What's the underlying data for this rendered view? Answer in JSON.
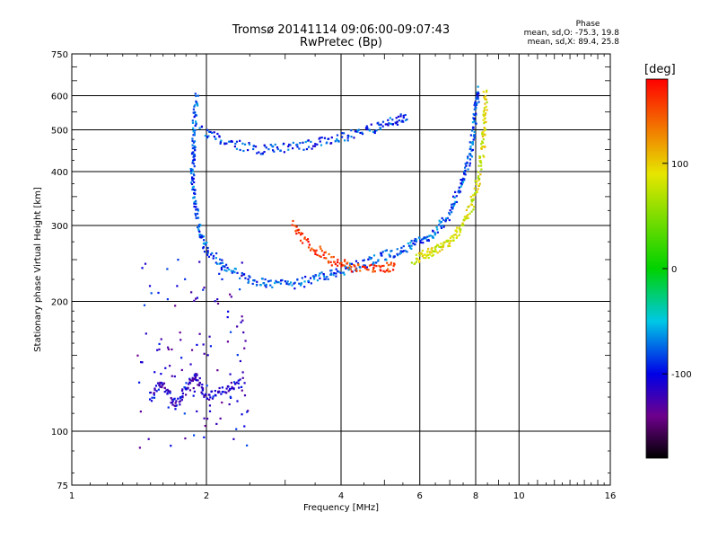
{
  "header": {
    "title_line1": "Tromsø 20141114 09:06:00-09:07:43",
    "title_line2": "RwPretec (Bp)"
  },
  "phase_info": {
    "title": "Phase",
    "line_o": "mean, sd,O: -75.3, 19.8",
    "line_x": "mean, sd,X:  89.4, 25.8"
  },
  "colorbar": {
    "label": "[deg]",
    "ticks": [
      "100",
      "0",
      "-100"
    ],
    "tick_values": [
      100,
      0,
      -100
    ],
    "range": [
      -180,
      180
    ]
  },
  "chart_data": {
    "type": "scatter",
    "title": "Tromsø 20141114 09:06:00-09:07:43",
    "subtitle": "RwPretec (Bp)",
    "xlabel": "Frequency [MHz]",
    "ylabel": "Stationary phase Virtual Height [km]",
    "xscale": "log",
    "yscale": "log",
    "xlim": [
      1,
      16
    ],
    "ylim": [
      75,
      750
    ],
    "x_ticks": [
      1,
      2,
      4,
      6,
      8,
      10,
      16
    ],
    "x_tick_labels": [
      "1",
      "2",
      "4",
      "6",
      "8",
      "10",
      "16"
    ],
    "y_ticks": [
      75,
      100,
      200,
      300,
      400,
      500,
      600,
      750
    ],
    "y_tick_labels": [
      "75",
      "100",
      "200",
      "300",
      "400",
      "500",
      "600",
      "750"
    ],
    "grid": true,
    "colormap": "rainbow (phase, deg)",
    "traces": [
      {
        "kind": "O-mode F trace",
        "phase": -80,
        "points": [
          [
            1.9,
            600
          ],
          [
            1.88,
            520
          ],
          [
            1.87,
            450
          ],
          [
            1.86,
            400
          ],
          [
            1.88,
            350
          ],
          [
            1.92,
            300
          ],
          [
            2.0,
            265
          ],
          [
            2.2,
            240
          ],
          [
            2.5,
            225
          ],
          [
            2.8,
            218
          ],
          [
            3.2,
            220
          ],
          [
            3.6,
            228
          ],
          [
            4.0,
            235
          ],
          [
            4.5,
            245
          ],
          [
            5.0,
            255
          ],
          [
            5.5,
            265
          ],
          [
            6.0,
            275
          ],
          [
            6.5,
            290
          ],
          [
            7.0,
            320
          ],
          [
            7.4,
            370
          ],
          [
            7.7,
            420
          ],
          [
            7.9,
            480
          ],
          [
            8.0,
            560
          ],
          [
            8.1,
            620
          ]
        ]
      },
      {
        "kind": "O-mode oblique/multiple",
        "phase": -85,
        "points": [
          [
            1.95,
            500
          ],
          [
            2.2,
            470
          ],
          [
            2.6,
            450
          ],
          [
            3.0,
            455
          ],
          [
            3.5,
            465
          ],
          [
            4.0,
            480
          ],
          [
            4.6,
            500
          ],
          [
            5.2,
            520
          ],
          [
            5.6,
            540
          ]
        ]
      },
      {
        "kind": "X-mode F trace",
        "phase": 85,
        "points": [
          [
            5.8,
            250
          ],
          [
            6.2,
            258
          ],
          [
            6.6,
            265
          ],
          [
            7.0,
            275
          ],
          [
            7.4,
            295
          ],
          [
            7.8,
            330
          ],
          [
            8.1,
            380
          ],
          [
            8.3,
            450
          ],
          [
            8.4,
            530
          ],
          [
            8.4,
            620
          ]
        ]
      },
      {
        "kind": "Orange segment",
        "phase": 160,
        "points": [
          [
            3.1,
            300
          ],
          [
            3.4,
            270
          ],
          [
            3.8,
            250
          ],
          [
            4.2,
            240
          ],
          [
            4.8,
            238
          ],
          [
            5.3,
            242
          ]
        ]
      },
      {
        "kind": "Low-frequency E/Es region",
        "phase": -110,
        "points": [
          [
            1.5,
            120
          ],
          [
            1.6,
            130
          ],
          [
            1.7,
            115
          ],
          [
            1.8,
            125
          ],
          [
            1.9,
            135
          ],
          [
            2.0,
            120
          ],
          [
            2.2,
            125
          ],
          [
            2.4,
            130
          ]
        ]
      }
    ]
  }
}
